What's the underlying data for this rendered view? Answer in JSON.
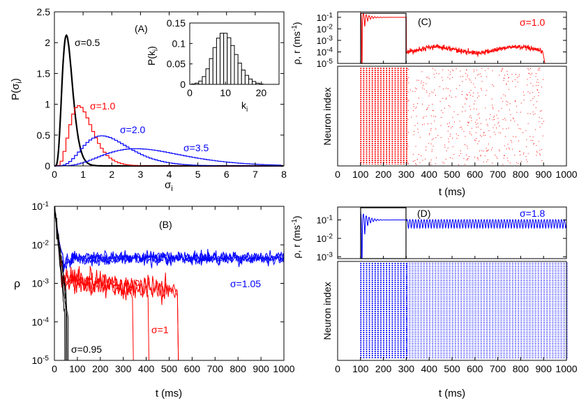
{
  "chart_data": [
    {
      "panel": "A",
      "type": "line",
      "title": "(A)",
      "xlabel": "σi",
      "ylabel": "P(σi)",
      "xlim": [
        0,
        8
      ],
      "ylim": [
        0,
        2.5
      ],
      "x_ticks": [
        "0",
        "1",
        "2",
        "3",
        "4",
        "5",
        "6",
        "7",
        "8"
      ],
      "y_ticks": [
        "0",
        "0.5",
        "1",
        "1.5",
        "2",
        "2.5"
      ],
      "series": [
        {
          "name": "σ=0.5",
          "color": "#000000",
          "mean": 0.5,
          "shape": 5
        },
        {
          "name": "σ=1.0",
          "color": "#ff0000",
          "mean": 1.0,
          "shape": 5
        },
        {
          "name": "σ=2.0",
          "color": "#0000ff",
          "mean": 2.0,
          "shape": 5
        },
        {
          "name": "σ=3.5",
          "color": "#0000ff",
          "mean": 3.5,
          "shape": 5
        }
      ],
      "inset": {
        "type": "bar",
        "xlabel": "ki",
        "ylabel": "P(ki)",
        "xlim": [
          0,
          25
        ],
        "ylim": [
          0,
          0.15
        ],
        "x_ticks": [
          "0",
          "10",
          "20"
        ],
        "y_ticks": [
          "0",
          "0.05",
          "0.1",
          "0.15"
        ],
        "categories": [
          1,
          2,
          3,
          4,
          5,
          6,
          7,
          8,
          9,
          10,
          11,
          12,
          13,
          14,
          15,
          16,
          17,
          18,
          19,
          20
        ],
        "values": [
          0.001,
          0.003,
          0.008,
          0.019,
          0.038,
          0.063,
          0.09,
          0.113,
          0.125,
          0.125,
          0.114,
          0.095,
          0.073,
          0.052,
          0.035,
          0.022,
          0.013,
          0.007,
          0.003,
          0.001
        ]
      }
    },
    {
      "panel": "B",
      "type": "line",
      "title": "(B)",
      "xlabel": "t (ms)",
      "ylabel": "ρ",
      "xlim": [
        0,
        1000
      ],
      "ylim": [
        1e-05,
        0.1
      ],
      "log_y": true,
      "x_ticks": [
        "0",
        "100",
        "200",
        "300",
        "400",
        "500",
        "600",
        "700",
        "800",
        "900",
        "1000"
      ],
      "y_ticks": [
        "10-5",
        "10-4",
        "10-3",
        "10-2",
        "10-1"
      ],
      "groups": [
        {
          "name": "σ=1.05",
          "color": "#0000ff",
          "level": 0.0045,
          "end": 1000,
          "runs": 4
        },
        {
          "name": "σ=1",
          "color": "#ff0000",
          "level": 0.0012,
          "ends": [
            350,
            415,
            545,
            545
          ],
          "runs": 4
        },
        {
          "name": "σ=0.95",
          "color": "#000000",
          "ends": [
            45,
            55,
            60,
            50
          ],
          "runs": 4
        }
      ]
    },
    {
      "panel": "C",
      "type": "line",
      "title": "(C)",
      "label": "σ=1.0",
      "color": "#ff0000",
      "ylabel": "ρ, r (ms-1)",
      "y_ticks": [
        "10-5",
        "10-4",
        "10-3",
        "10-2",
        "10-1"
      ],
      "ylim": [
        1e-05,
        0.3
      ],
      "log_y": true,
      "window": [
        100,
        300
      ],
      "window_level": 0.1,
      "tail_level": 0.00015,
      "tail_end": 920,
      "raster_ylabel": "Neuron index",
      "xlabel": "t (ms)",
      "xlim": [
        0,
        1000
      ],
      "x_ticks": [
        "0",
        "100",
        "200",
        "300",
        "400",
        "500",
        "600",
        "700",
        "800",
        "900",
        "1000"
      ],
      "raster": "sparse"
    },
    {
      "panel": "D",
      "type": "line",
      "title": "(D)",
      "label": "σ=1.8",
      "color": "#0000ff",
      "ylabel": "ρ, r (ms-1)",
      "y_ticks": [
        "10-3",
        "10-2",
        "10-1"
      ],
      "ylim": [
        0.0008,
        0.5
      ],
      "log_y": true,
      "window": [
        100,
        300
      ],
      "window_level": 0.1,
      "tail_level": 0.07,
      "tail_end": 1000,
      "raster_ylabel": "Neuron index",
      "xlabel": "t (ms)",
      "xlim": [
        0,
        1000
      ],
      "x_ticks": [
        "0",
        "100",
        "200",
        "300",
        "400",
        "500",
        "600",
        "700",
        "800",
        "900",
        "1000"
      ],
      "raster": "dense"
    }
  ]
}
